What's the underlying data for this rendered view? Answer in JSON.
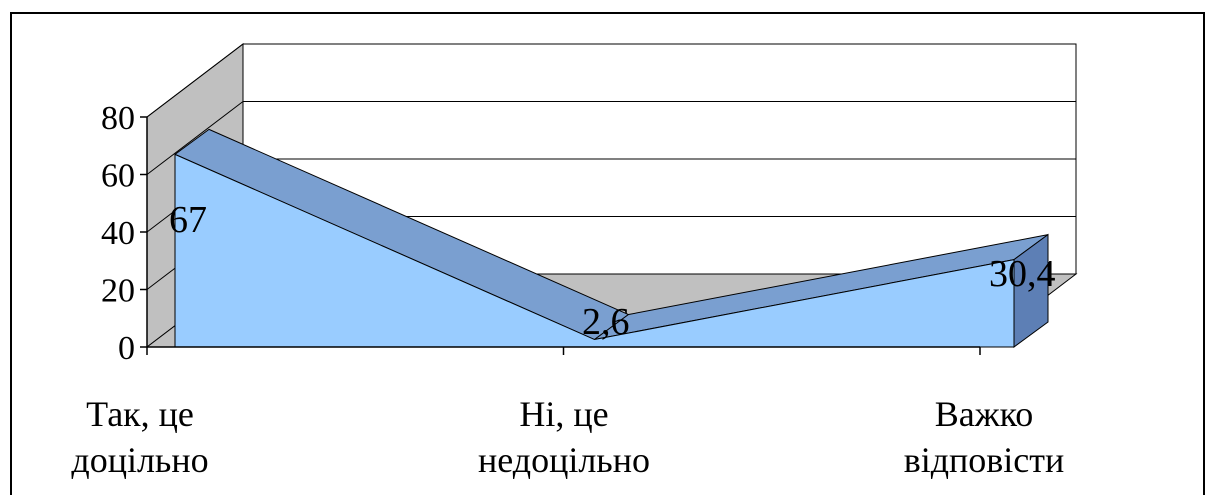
{
  "chart_data": {
    "type": "area",
    "title": "",
    "xlabel": "",
    "ylabel": "",
    "ylim": [
      0,
      80
    ],
    "yticks": [
      "0",
      "20",
      "40",
      "60",
      "80"
    ],
    "grid": true,
    "legend": "none",
    "categories": [
      {
        "line1": "Так, це",
        "line2": "доцільно"
      },
      {
        "line1": "Ні, це",
        "line2": "недоцільно"
      },
      {
        "line1": "Важко",
        "line2": "відповісти"
      }
    ],
    "series": [
      {
        "values": [
          67,
          2.6,
          30.4
        ],
        "data_labels": [
          "67",
          "2,6",
          "30,4"
        ]
      }
    ],
    "colors": {
      "area_front": "#99CCFF",
      "area_top": "#7A9FD0",
      "area_side": "#5D7FB5",
      "floor": "#C0C0C0",
      "back_wall": "#FFFFFF",
      "side_wall": "#C0C0C0",
      "grid": "#000000"
    }
  }
}
